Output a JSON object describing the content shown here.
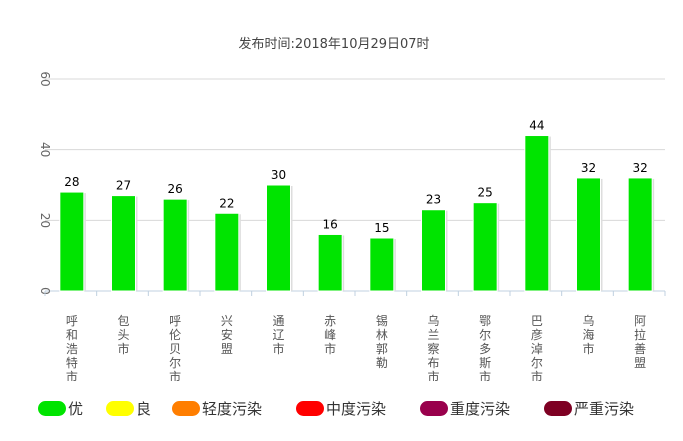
{
  "chart_data": {
    "type": "bar",
    "title": "发布时间:2018年10月29日07时",
    "xlabel": "",
    "ylabel": "",
    "ylim": [
      0,
      60
    ],
    "yticks": [
      0,
      20,
      40,
      60
    ],
    "grid": true,
    "bar_color": "#00e400",
    "categories": [
      "呼和浩特市",
      "包头市",
      "呼伦贝尔市",
      "兴安盟",
      "通辽市",
      "赤峰市",
      "锡林郭勒盟",
      "乌兰察布市",
      "鄂尔多斯市",
      "巴彦淖尔市",
      "乌海市",
      "阿拉善盟"
    ],
    "category_visible_labels": [
      "呼和浩特市",
      "包头市",
      "呼伦贝尔市",
      "兴安盟",
      "通辽市",
      "赤峰市",
      "锡林郭勒",
      "乌兰察布市",
      "鄂尔多斯市",
      "巴彦淖尔市",
      "乌海市",
      "阿拉善盟"
    ],
    "values": [
      28,
      27,
      26,
      22,
      30,
      16,
      15,
      23,
      25,
      44,
      32,
      32
    ]
  },
  "legend": [
    {
      "label": "优",
      "color": "#00e400"
    },
    {
      "label": "良",
      "color": "#ffff00"
    },
    {
      "label": "轻度污染",
      "color": "#ff7e00"
    },
    {
      "label": "中度污染",
      "color": "#ff0000"
    },
    {
      "label": "重度污染",
      "color": "#99004c"
    },
    {
      "label": "严重污染",
      "color": "#7e0023"
    }
  ]
}
